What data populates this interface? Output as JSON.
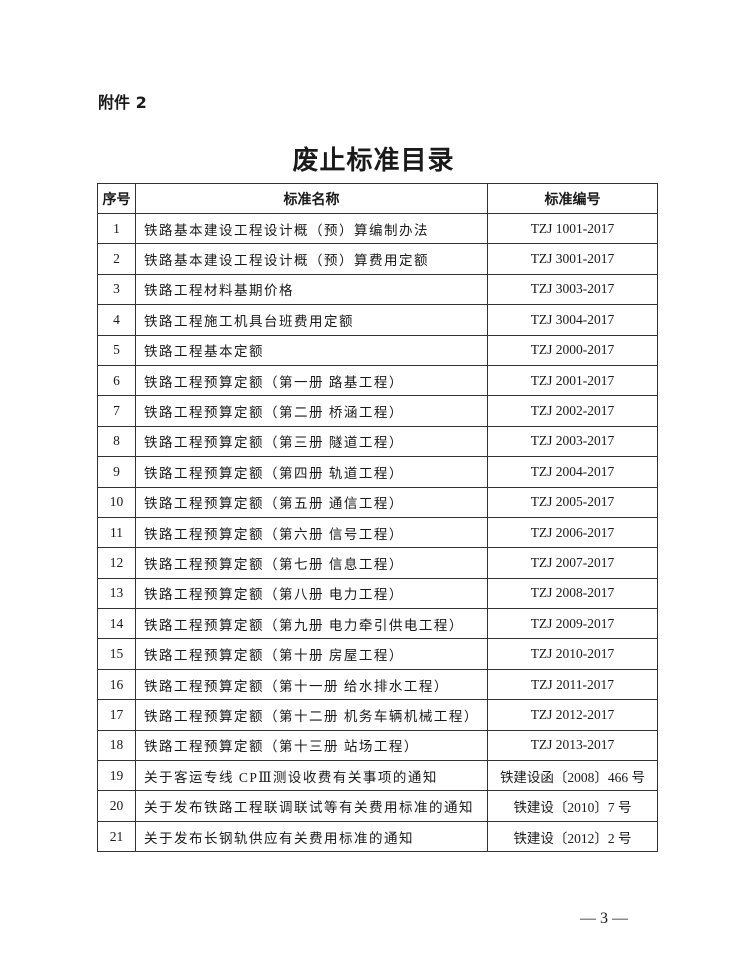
{
  "attachment_label": "附件 2",
  "title": "废止标准目录",
  "table": {
    "headers": [
      "序号",
      "标准名称",
      "标准编号"
    ],
    "rows": [
      [
        "1",
        "铁路基本建设工程设计概（预）算编制办法",
        "TZJ 1001-2017"
      ],
      [
        "2",
        "铁路基本建设工程设计概（预）算费用定额",
        "TZJ 3001-2017"
      ],
      [
        "3",
        "铁路工程材料基期价格",
        "TZJ 3003-2017"
      ],
      [
        "4",
        "铁路工程施工机具台班费用定额",
        "TZJ 3004-2017"
      ],
      [
        "5",
        "铁路工程基本定额",
        "TZJ 2000-2017"
      ],
      [
        "6",
        "铁路工程预算定额（第一册 路基工程）",
        "TZJ 2001-2017"
      ],
      [
        "7",
        "铁路工程预算定额（第二册 桥涵工程）",
        "TZJ 2002-2017"
      ],
      [
        "8",
        "铁路工程预算定额（第三册 隧道工程）",
        "TZJ 2003-2017"
      ],
      [
        "9",
        "铁路工程预算定额（第四册 轨道工程）",
        "TZJ 2004-2017"
      ],
      [
        "10",
        "铁路工程预算定额（第五册 通信工程）",
        "TZJ 2005-2017"
      ],
      [
        "11",
        "铁路工程预算定额（第六册 信号工程）",
        "TZJ 2006-2017"
      ],
      [
        "12",
        "铁路工程预算定额（第七册 信息工程）",
        "TZJ 2007-2017"
      ],
      [
        "13",
        "铁路工程预算定额（第八册 电力工程）",
        "TZJ 2008-2017"
      ],
      [
        "14",
        "铁路工程预算定额（第九册 电力牵引供电工程）",
        "TZJ 2009-2017"
      ],
      [
        "15",
        "铁路工程预算定额（第十册 房屋工程）",
        "TZJ 2010-2017"
      ],
      [
        "16",
        "铁路工程预算定额（第十一册 给水排水工程）",
        "TZJ 2011-2017"
      ],
      [
        "17",
        "铁路工程预算定额（第十二册 机务车辆机械工程）",
        "TZJ 2012-2017"
      ],
      [
        "18",
        "铁路工程预算定额（第十三册 站场工程）",
        "TZJ 2013-2017"
      ],
      [
        "19",
        "关于客运专线 CPⅢ测设收费有关事项的通知",
        "铁建设函〔2008〕466 号"
      ],
      [
        "20",
        "关于发布铁路工程联调联试等有关费用标准的通知",
        "铁建设〔2010〕7 号"
      ],
      [
        "21",
        "关于发布长钢轨供应有关费用标准的通知",
        "铁建设〔2012〕2 号"
      ]
    ]
  },
  "page_number": "— 3 —"
}
